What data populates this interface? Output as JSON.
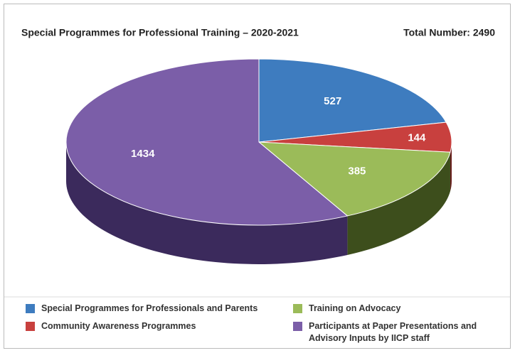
{
  "chart_data": {
    "type": "pie",
    "title": "Special Programmes for Professional Training – 2020-2021",
    "subtitle": "Total Number: 2490",
    "categories": [
      "Special Programmes for Professionals and Parents",
      "Community Awareness Programmes",
      "Training on Advocacy",
      "Participants at Paper Presentations and Advisory Inputs by IICP staff"
    ],
    "values": [
      527,
      144,
      385,
      1434
    ],
    "colors": [
      "#3e7cbf",
      "#c8403e",
      "#9bbb59",
      "#7b5ea8"
    ],
    "side_colors": [
      "#1f3f63",
      "#6a1e1d",
      "#3d4e1c",
      "#3b2a5c"
    ],
    "legend_order": [
      0,
      1,
      2,
      3
    ]
  }
}
